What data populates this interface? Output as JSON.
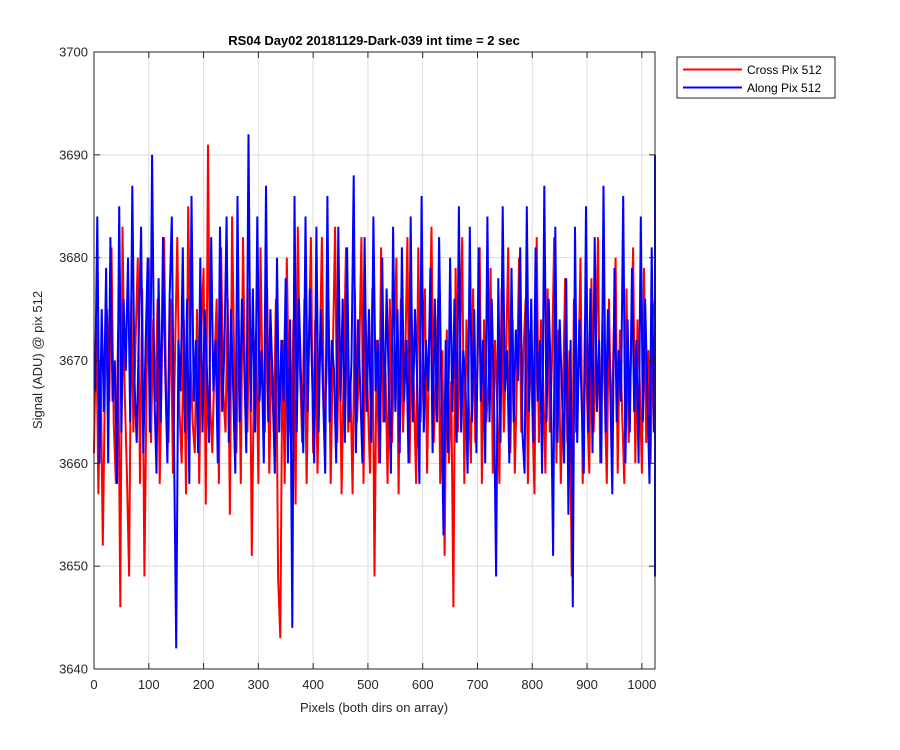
{
  "chart_data": {
    "type": "line",
    "title": "RS04 Day02 20181129-Dark-039 int time = 2 sec",
    "xlabel": "Pixels (both dirs on array)",
    "ylabel": "Signal (ADU) @ pix 512",
    "xlim": [
      0,
      1024
    ],
    "ylim": [
      3640,
      3700
    ],
    "xticks": [
      0,
      100,
      200,
      300,
      400,
      500,
      600,
      700,
      800,
      900,
      1000
    ],
    "yticks": [
      3640,
      3650,
      3660,
      3670,
      3680,
      3690,
      3700
    ],
    "grid": true,
    "legend_position": "outside top-right",
    "sampling": "one sample every 4 pixels (approximate digitization of a dense noise trace)",
    "series": [
      {
        "name": "Cross Pix 512",
        "color": "#ff0000",
        "x_start": 0,
        "x_step": 4,
        "values": [
          3661,
          3674,
          3657,
          3670,
          3652,
          3668,
          3675,
          3666,
          3681,
          3664,
          3658,
          3673,
          3646,
          3683,
          3667,
          3659,
          3649,
          3676,
          3663,
          3672,
          3680,
          3658,
          3677,
          3649,
          3668,
          3680,
          3662,
          3674,
          3666,
          3676,
          3658,
          3670,
          3682,
          3665,
          3662,
          3676,
          3659,
          3671,
          3682,
          3665,
          3660,
          3674,
          3657,
          3685,
          3670,
          3664,
          3661,
          3675,
          3658,
          3673,
          3679,
          3656,
          3691,
          3666,
          3661,
          3670,
          3676,
          3658,
          3681,
          3667,
          3663,
          3676,
          3655,
          3684,
          3669,
          3661,
          3674,
          3658,
          3682,
          3667,
          3663,
          3677,
          3651,
          3669,
          3673,
          3658,
          3681,
          3666,
          3663,
          3677,
          3659,
          3671,
          3663,
          3676,
          3649,
          3643,
          3672,
          3658,
          3680,
          3666,
          3662,
          3674,
          3656,
          3683,
          3669,
          3662,
          3676,
          3658,
          3671,
          3682,
          3661,
          3674,
          3659,
          3670,
          3682,
          3664,
          3668,
          3676,
          3658,
          3671,
          3683,
          3662,
          3674,
          3657,
          3670,
          3681,
          3663,
          3668,
          3657,
          3677,
          3664,
          3670,
          3682,
          3658,
          3674,
          3666,
          3659,
          3677,
          3649,
          3672,
          3660,
          3681,
          3664,
          3669,
          3658,
          3676,
          3662,
          3671,
          3680,
          3657,
          3676,
          3663,
          3670,
          3682,
          3660,
          3674,
          3667,
          3658,
          3681,
          3664,
          3670,
          3677,
          3659,
          3672,
          3683,
          3662,
          3668,
          3676,
          3658,
          3671,
          3651,
          3673,
          3660,
          3668,
          3646,
          3679,
          3663,
          3671,
          3682,
          3658,
          3674,
          3666,
          3660,
          3677,
          3662,
          3669,
          3681,
          3658,
          3674,
          3664,
          3668,
          3679,
          3659,
          3672,
          3666,
          3658,
          3677,
          3663,
          3670,
          3681,
          3661,
          3674,
          3659,
          3668,
          3680,
          3663,
          3671,
          3676,
          3658,
          3673,
          3665,
          3657,
          3682,
          3662,
          3674,
          3668,
          3659,
          3677,
          3663,
          3670,
          3682,
          3660,
          3673,
          3658,
          3667,
          3678,
          3662,
          3671,
          3649,
          3676,
          3663,
          3668,
          3680,
          3658,
          3673,
          3666,
          3659,
          3678,
          3663,
          3670,
          3682,
          3660,
          3674,
          3667,
          3658,
          3676,
          3663,
          3671,
          3680,
          3659,
          3673,
          3665,
          3658,
          3677,
          3662,
          3670,
          3681,
          3660,
          3674,
          3668,
          3659,
          3679,
          3662,
          3671,
          3660,
          3674,
          3676,
          3652
        ]
      },
      {
        "name": "Along Pix 512",
        "color": "#0000ff",
        "x_start": 2,
        "x_step": 4,
        "values": [
          3667,
          3684,
          3660,
          3675,
          3665,
          3679,
          3660,
          3682,
          3666,
          3670,
          3658,
          3685,
          3663,
          3676,
          3669,
          3680,
          3664,
          3687,
          3668,
          3662,
          3673,
          3683,
          3661,
          3671,
          3680,
          3663,
          3690,
          3667,
          3659,
          3678,
          3664,
          3682,
          3669,
          3660,
          3676,
          3684,
          3662,
          3642,
          3672,
          3667,
          3681,
          3663,
          3676,
          3658,
          3686,
          3666,
          3672,
          3661,
          3680,
          3663,
          3675,
          3669,
          3662,
          3682,
          3667,
          3672,
          3660,
          3683,
          3665,
          3671,
          3684,
          3662,
          3675,
          3667,
          3659,
          3686,
          3664,
          3676,
          3670,
          3661,
          3692,
          3665,
          3677,
          3663,
          3684,
          3666,
          3671,
          3660,
          3687,
          3664,
          3675,
          3668,
          3659,
          3680,
          3663,
          3672,
          3666,
          3678,
          3660,
          3674,
          3644,
          3686,
          3663,
          3676,
          3668,
          3661,
          3684,
          3665,
          3677,
          3669,
          3660,
          3683,
          3663,
          3675,
          3667,
          3659,
          3686,
          3664,
          3672,
          3669,
          3660,
          3683,
          3666,
          3676,
          3662,
          3681,
          3664,
          3670,
          3688,
          3661,
          3674,
          3667,
          3660,
          3682,
          3665,
          3675,
          3662,
          3684,
          3667,
          3672,
          3660,
          3680,
          3664,
          3677,
          3668,
          3659,
          3683,
          3665,
          3675,
          3661,
          3681,
          3666,
          3672,
          3660,
          3684,
          3664,
          3675,
          3668,
          3658,
          3686,
          3663,
          3672,
          3667,
          3679,
          3661,
          3676,
          3664,
          3682,
          3667,
          3653,
          3672,
          3661,
          3680,
          3665,
          3676,
          3662,
          3685,
          3663,
          3671,
          3668,
          3659,
          3683,
          3664,
          3675,
          3661,
          3681,
          3666,
          3672,
          3660,
          3684,
          3664,
          3676,
          3667,
          3649,
          3678,
          3662,
          3685,
          3667,
          3671,
          3660,
          3679,
          3664,
          3673,
          3668,
          3681,
          3663,
          3659,
          3685,
          3665,
          3676,
          3662,
          3681,
          3666,
          3672,
          3659,
          3687,
          3664,
          3676,
          3668,
          3651,
          3683,
          3662,
          3674,
          3667,
          3660,
          3678,
          3655,
          3672,
          3646,
          3683,
          3662,
          3674,
          3666,
          3659,
          3685,
          3663,
          3677,
          3661,
          3682,
          3665,
          3672,
          3660,
          3687,
          3663,
          3675,
          3668,
          3657,
          3679,
          3664,
          3671,
          3666,
          3686,
          3660,
          3674,
          3663,
          3679,
          3665,
          3672,
          3660,
          3684,
          3664,
          3676,
          3667,
          3658,
          3681,
          3663,
          3674,
          3669,
          3660,
          3690,
          3649,
          3676
        ]
      }
    ]
  }
}
